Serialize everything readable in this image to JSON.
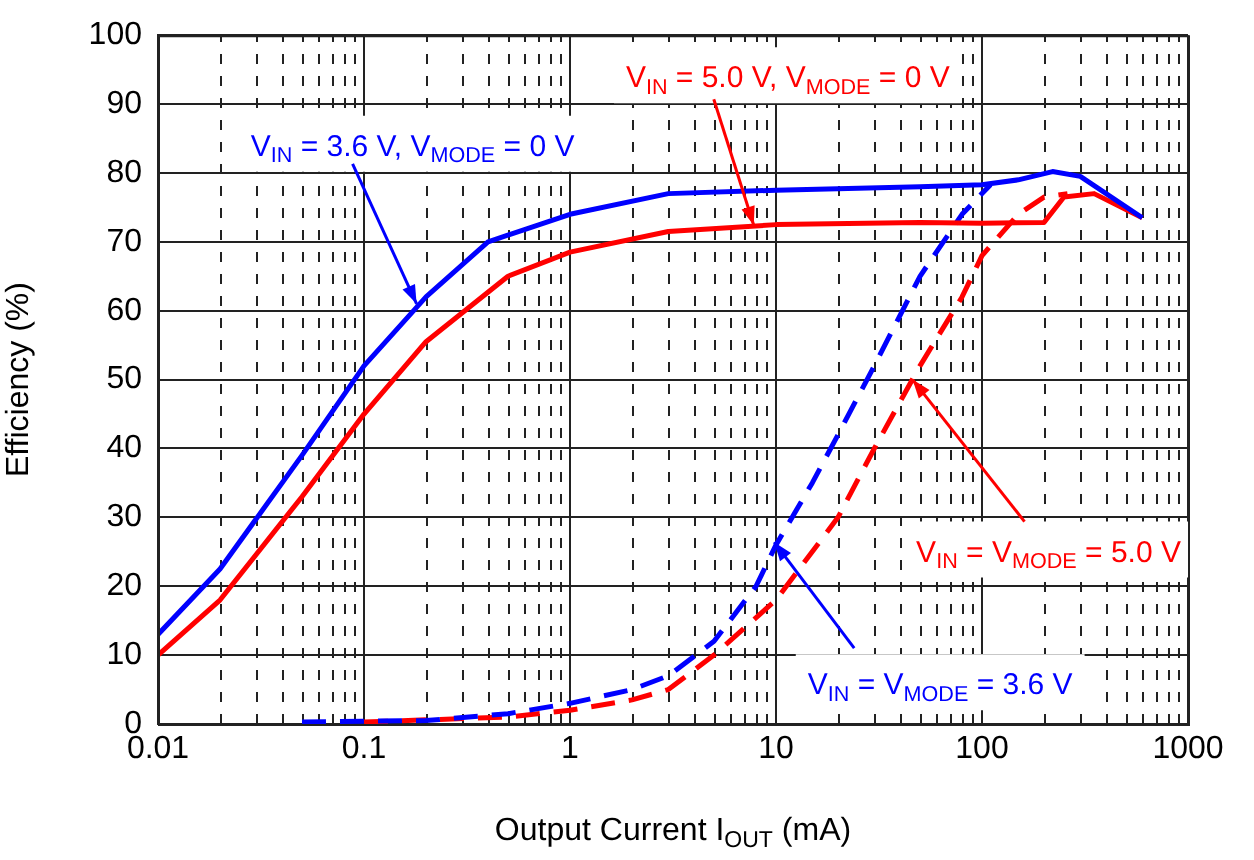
{
  "chart_data": {
    "type": "line",
    "xlabel": "Output Current I$_{OUT}$ (mA)",
    "ylabel": "Efficiency (%)",
    "log": "x",
    "grid": true,
    "legend": false,
    "marker": "none",
    "xlim": [
      0.01,
      1000
    ],
    "xticks": [
      0.01,
      0.1,
      1,
      10,
      100,
      1000
    ],
    "ylim": [
      0,
      100
    ],
    "yticks": [
      0,
      10,
      20,
      30,
      40,
      50,
      60,
      70,
      80,
      90,
      100
    ],
    "series": [
      {
        "color": "#0000ff",
        "line_style": "solid",
        "x": [
          0.01,
          0.02,
          0.05,
          0.1,
          0.2,
          0.4,
          1,
          3,
          10,
          50,
          100,
          150,
          220,
          300,
          600
        ],
        "values": [
          13,
          22.5,
          39,
          52,
          62,
          70,
          74,
          77,
          77.5,
          78,
          78.3,
          79,
          80.2,
          79.5,
          73.5
        ]
      },
      {
        "color": "#ff0000",
        "line_style": "solid",
        "x": [
          0.01,
          0.02,
          0.05,
          0.1,
          0.2,
          0.5,
          1,
          3,
          10,
          50,
          100,
          200,
          250,
          350,
          600
        ],
        "values": [
          10,
          18,
          33,
          45,
          55.5,
          65,
          68.5,
          71.5,
          72.5,
          72.8,
          72.7,
          72.8,
          76.5,
          77,
          73.5
        ]
      },
      {
        "color": "#0000ff",
        "line_style": "dashed",
        "x": [
          0.05,
          0.2,
          0.5,
          1,
          2,
          3,
          5,
          8,
          10,
          15,
          20,
          30,
          50,
          80,
          110
        ],
        "values": [
          0.3,
          0.5,
          1.5,
          3,
          5,
          7,
          12,
          20,
          26,
          35,
          42,
          52,
          65,
          74,
          78.3
        ]
      },
      {
        "color": "#ff0000",
        "line_style": "dashed",
        "x": [
          0.1,
          0.5,
          1,
          2,
          3,
          5,
          10,
          20,
          30,
          50,
          80,
          100,
          150,
          200,
          260
        ],
        "values": [
          0.3,
          1,
          2,
          3.5,
          5,
          10,
          18,
          30,
          40,
          52,
          62,
          68,
          74,
          76.5,
          77
        ]
      }
    ],
    "annotations": [
      {
        "text": "V$_{IN}$ = 3.6 V, V$_{MODE}$ = 0 V",
        "x": 0.18,
        "y": 61
      },
      {
        "text": "V$_{IN}$ = 5.0 V, V$_{MODE}$ = 0 V",
        "x": 7.8,
        "y": 72.4
      },
      {
        "text": "V$_{IN}$ = V$_{MODE}$ = 5.0 V",
        "x": 46,
        "y": 50
      },
      {
        "text": "V$_{IN}$ = V$_{MODE}$ = 3.6 V",
        "x": 9.8,
        "y": 26.4
      }
    ]
  }
}
